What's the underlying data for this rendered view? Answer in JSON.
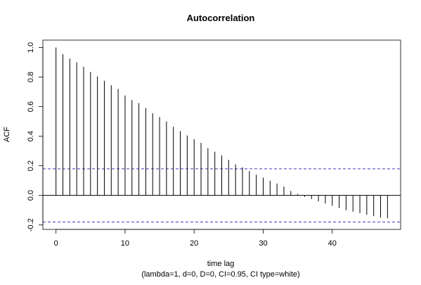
{
  "colors": {
    "background": "#ffffff",
    "axis": "#000000",
    "stem": "#000000",
    "ci_line": "#3f3fbf",
    "text": "#000000"
  },
  "chart_data": {
    "type": "bar",
    "subtype": "acf-stem",
    "title": "Autocorrelation",
    "xlabel": "time lag",
    "subtitle": "(lambda=1, d=0, D=0, CI=0.95, CI type=white)",
    "ylabel": "ACF",
    "xlim": [
      -1.9,
      49.9
    ],
    "ylim": [
      -0.23,
      1.05
    ],
    "x_ticks": [
      0,
      10,
      20,
      30,
      40
    ],
    "y_ticks": [
      -0.2,
      0.0,
      0.2,
      0.4,
      0.6,
      0.8,
      1.0
    ],
    "y_tick_labels": [
      "-0.2",
      "0.0",
      "0.2",
      "0.4",
      "0.6",
      "0.8",
      "1.0"
    ],
    "zero_line": true,
    "grid": false,
    "confidence_interval": {
      "upper": 0.18,
      "lower": -0.18,
      "style": "dashed"
    },
    "x": [
      0,
      1,
      2,
      3,
      4,
      5,
      6,
      7,
      8,
      9,
      10,
      11,
      12,
      13,
      14,
      15,
      16,
      17,
      18,
      19,
      20,
      21,
      22,
      23,
      24,
      25,
      26,
      27,
      28,
      29,
      30,
      31,
      32,
      33,
      34,
      35,
      36,
      37,
      38,
      39,
      40,
      41,
      42,
      43,
      44,
      45,
      46,
      47,
      48
    ],
    "values": [
      1.0,
      0.955,
      0.925,
      0.9,
      0.87,
      0.835,
      0.805,
      0.775,
      0.745,
      0.72,
      0.675,
      0.645,
      0.625,
      0.59,
      0.555,
      0.53,
      0.5,
      0.465,
      0.435,
      0.405,
      0.38,
      0.355,
      0.32,
      0.295,
      0.27,
      0.24,
      0.21,
      0.19,
      0.165,
      0.14,
      0.12,
      0.1,
      0.08,
      0.06,
      0.03,
      0.01,
      -0.01,
      -0.025,
      -0.04,
      -0.055,
      -0.07,
      -0.085,
      -0.1,
      -0.11,
      -0.12,
      -0.13,
      -0.14,
      -0.15,
      -0.155
    ]
  }
}
